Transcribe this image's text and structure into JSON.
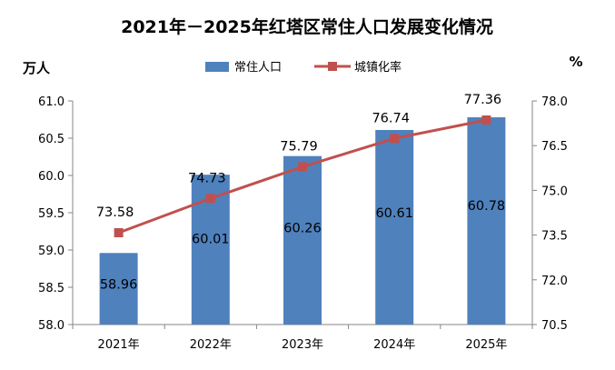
{
  "chart_data": {
    "type": "bar+line",
    "title": "2021年－2025年红塔区常住人口发展变化情况",
    "categories": [
      "2021年",
      "2022年",
      "2023年",
      "2024年",
      "2025年"
    ],
    "left_unit": "万人",
    "right_unit": "%",
    "y_left": {
      "min": 58.0,
      "max": 61.0,
      "ticks": [
        "58.0",
        "58.5",
        "59.0",
        "59.5",
        "60.0",
        "60.5",
        "61.0"
      ]
    },
    "y_right": {
      "min": 70.5,
      "max": 78.0,
      "ticks": [
        "70.5",
        "72.0",
        "73.5",
        "75.0",
        "76.5",
        "78.0"
      ]
    },
    "series": [
      {
        "name": "常住人口",
        "type": "bar",
        "axis": "left",
        "color": "#4f81bd",
        "values": [
          58.96,
          60.01,
          60.26,
          60.61,
          60.78
        ],
        "labels": [
          "58.96",
          "60.01",
          "60.26",
          "60.61",
          "60.78"
        ]
      },
      {
        "name": "城镇化率",
        "type": "line",
        "axis": "right",
        "color": "#c0504d",
        "values": [
          73.58,
          74.73,
          75.79,
          76.74,
          77.36
        ],
        "labels": [
          "73.58",
          "74.73",
          "75.79",
          "76.74",
          "77.36"
        ]
      }
    ],
    "legend_position": "top-center",
    "grid": false
  }
}
